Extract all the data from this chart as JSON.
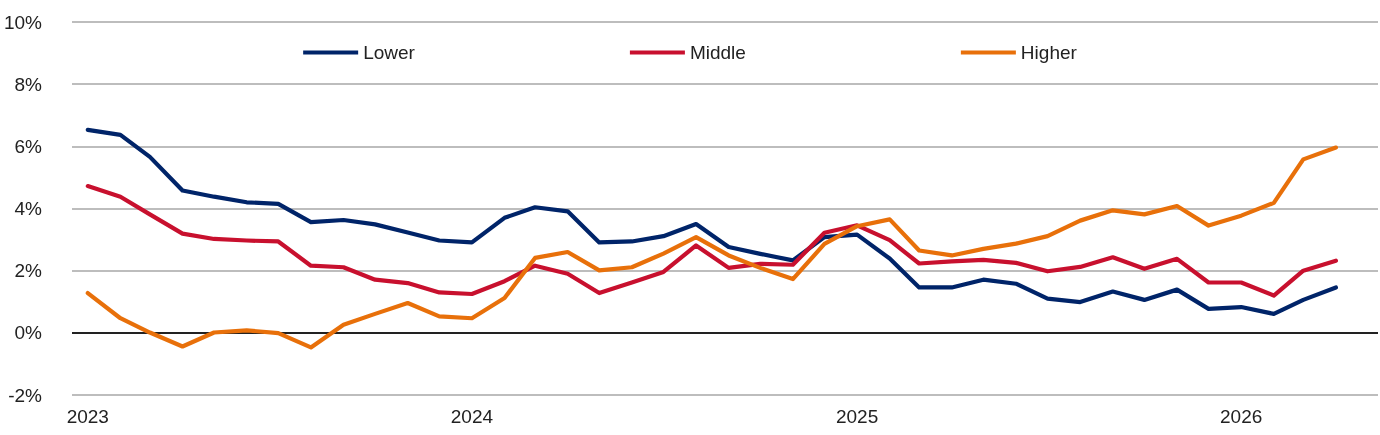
{
  "chart_data": {
    "type": "line",
    "x": [
      "2023-01",
      "2023-02",
      "2023-03",
      "2023-04",
      "2023-05",
      "2023-06",
      "2023-07",
      "2023-08",
      "2023-09",
      "2023-10",
      "2023-11",
      "2023-12",
      "2024-01",
      "2024-02",
      "2024-03",
      "2024-04",
      "2024-05",
      "2024-06",
      "2024-07",
      "2024-08",
      "2024-09",
      "2024-10",
      "2024-11",
      "2024-12",
      "2025-01",
      "2025-02",
      "2025-03",
      "2025-04",
      "2025-05",
      "2025-06",
      "2025-07",
      "2025-08",
      "2025-09",
      "2025-10",
      "2025-11",
      "2025-12",
      "2026-01",
      "2026-02",
      "2026-03",
      "2026-04"
    ],
    "series": [
      {
        "name": "Lower",
        "color": "#002469",
        "values": [
          6.53,
          6.37,
          5.66,
          4.58,
          4.38,
          4.2,
          4.15,
          3.56,
          3.63,
          3.49,
          3.23,
          2.97,
          2.91,
          3.7,
          4.04,
          3.91,
          2.91,
          2.94,
          3.11,
          3.5,
          2.76,
          2.54,
          2.33,
          3.08,
          3.16,
          2.39,
          1.46,
          1.46,
          1.71,
          1.58,
          1.1,
          0.99,
          1.33,
          1.06,
          1.39,
          0.77,
          0.83,
          0.61,
          1.06,
          1.46
        ]
      },
      {
        "name": "Middle",
        "color": "#c8102e",
        "values": [
          4.72,
          4.38,
          3.81,
          3.19,
          3.02,
          2.97,
          2.94,
          2.16,
          2.11,
          1.71,
          1.6,
          1.3,
          1.25,
          1.66,
          2.16,
          1.9,
          1.28,
          1.62,
          1.96,
          2.81,
          2.09,
          2.22,
          2.19,
          3.22,
          3.46,
          2.98,
          2.23,
          2.3,
          2.35,
          2.25,
          1.98,
          2.12,
          2.43,
          2.06,
          2.38,
          1.62,
          1.62,
          1.2,
          2.0,
          2.32
        ]
      },
      {
        "name": "Higher",
        "color": "#e8700a",
        "values": [
          1.28,
          0.47,
          0.01,
          -0.44,
          0.01,
          0.08,
          -0.01,
          -0.47,
          0.26,
          0.61,
          0.96,
          0.53,
          0.47,
          1.12,
          2.41,
          2.6,
          2.01,
          2.11,
          2.55,
          3.08,
          2.49,
          2.09,
          1.73,
          2.86,
          3.43,
          3.65,
          2.65,
          2.49,
          2.7,
          2.87,
          3.11,
          3.61,
          3.94,
          3.81,
          4.08,
          3.45,
          3.77,
          4.18,
          5.58,
          5.96
        ]
      }
    ],
    "xlim": [
      "2022-12-17",
      "2026-05-11"
    ],
    "xticks": [
      {
        "value": "2023-01",
        "label": "2023"
      },
      {
        "value": "2024-01",
        "label": "2024"
      },
      {
        "value": "2025-01",
        "label": "2025"
      },
      {
        "value": "2026-01",
        "label": "2026"
      }
    ],
    "ylim": [
      -2,
      10
    ],
    "yticks": [
      {
        "value": -2,
        "label": "-2%"
      },
      {
        "value": 0,
        "label": "0%"
      },
      {
        "value": 2,
        "label": "2%"
      },
      {
        "value": 4,
        "label": "4%"
      },
      {
        "value": 6,
        "label": "6%"
      },
      {
        "value": 8,
        "label": "8%"
      },
      {
        "value": 10,
        "label": "10%"
      }
    ],
    "grid": "y",
    "legend": "top",
    "marker": "none",
    "line_style": "solid"
  }
}
